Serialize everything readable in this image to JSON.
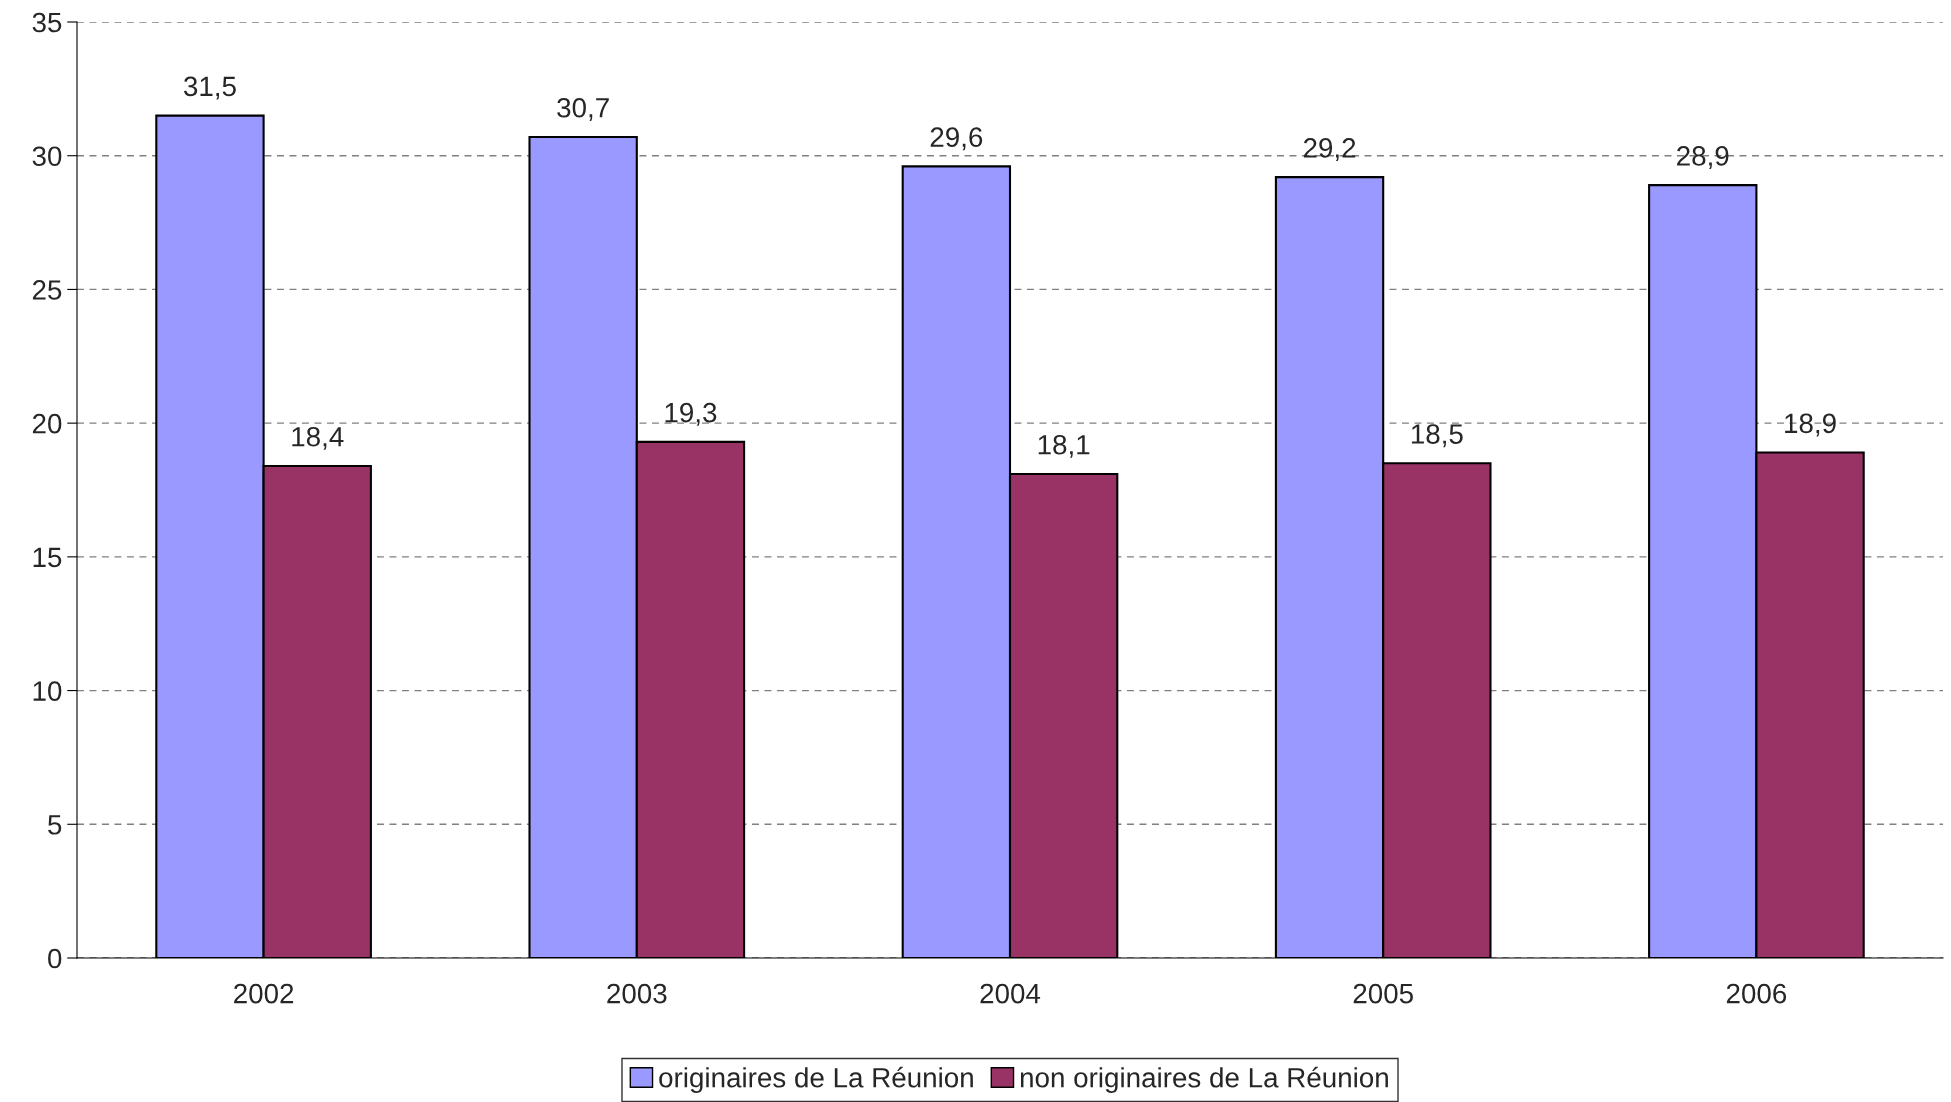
{
  "chart_data": {
    "type": "bar",
    "categories": [
      "2002",
      "2003",
      "2004",
      "2005",
      "2006"
    ],
    "series": [
      {
        "name": "originaires de La Réunion",
        "color": "#9999ff",
        "values": [
          31.5,
          30.7,
          29.6,
          29.2,
          28.9
        ],
        "value_labels": [
          "31,5",
          "30,7",
          "29,6",
          "29,2",
          "28,9"
        ]
      },
      {
        "name": "non originaires de La Réunion",
        "color": "#993366",
        "values": [
          18.4,
          19.3,
          18.1,
          18.5,
          18.9
        ],
        "value_labels": [
          "18,4",
          "19,3",
          "18,1",
          "18,5",
          "18,9"
        ]
      }
    ],
    "ylim": [
      0,
      35
    ],
    "yticks": [
      0,
      5,
      10,
      15,
      20,
      25,
      30,
      35
    ],
    "grid": "y",
    "legend": "bottom"
  }
}
